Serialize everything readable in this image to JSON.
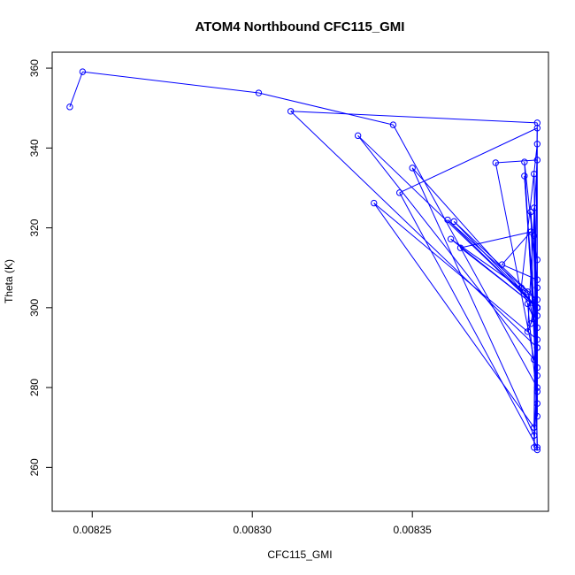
{
  "chart_data": {
    "type": "line",
    "title": "ATOM4 Northbound CFC115_GMI",
    "xlabel": "CFC115_GMI",
    "ylabel": "Theta (K)",
    "xlim": [
      0.0082375,
      0.0083925
    ],
    "ylim": [
      249,
      364
    ],
    "x_ticks": [
      "0.00825",
      "0.00830",
      "0.00835"
    ],
    "x_tick_values": [
      0.00825,
      0.0083,
      0.00835
    ],
    "y_ticks": [
      "260",
      "280",
      "300",
      "320",
      "340",
      "360"
    ],
    "y_tick_values": [
      260,
      280,
      300,
      320,
      340,
      360
    ],
    "grid": false,
    "line_color": "#0000ff",
    "marker": "open-circle",
    "series": [
      {
        "name": "",
        "x": [
          0.008243,
          0.008247,
          0.008302,
          0.008344,
          0.008389,
          0.008388,
          0.008389,
          0.008312,
          0.008389,
          0.008388,
          0.008333,
          0.008389,
          0.008386,
          0.008389,
          0.008376,
          0.008389,
          0.008388,
          0.00835,
          0.008389,
          0.008387,
          0.008389,
          0.008346,
          0.008389,
          0.008388,
          0.008338,
          0.008389,
          0.008386,
          0.008361,
          0.008389,
          0.008363,
          0.008389,
          0.008362,
          0.008389,
          0.008365,
          0.008387,
          0.008378,
          0.008389,
          0.008385,
          0.008389,
          0.008388,
          0.008389,
          0.008384,
          0.008389,
          0.008389,
          0.008386,
          0.008389,
          0.008389,
          0.008385,
          0.008389,
          0.008388,
          0.008389,
          0.008388,
          0.008389,
          0.008389,
          0.008389,
          0.008387,
          0.008389,
          0.008389,
          0.008389,
          0.008389
        ],
        "y": [
          350.3,
          359.1,
          353.8,
          345.8,
          280.0,
          265.0,
          346.3,
          349.2,
          290.0,
          287.0,
          343.1,
          300.0,
          294.0,
          337.0,
          336.3,
          283.0,
          268.0,
          335.0,
          300.0,
          324.0,
          265.0,
          328.8,
          345.0,
          270.0,
          326.2,
          292.0,
          304.0,
          322.0,
          300.0,
          321.6,
          302.0,
          317.2,
          300.0,
          315.0,
          319.0,
          310.8,
          307.0,
          336.5,
          279.0,
          333.5,
          295.0,
          305.0,
          341.0,
          276.0,
          301.0,
          300.0,
          290.0,
          333.0,
          285.0,
          325.0,
          264.4,
          318.0,
          312.0,
          272.8,
          300.0,
          296.0,
          305.0,
          300.0,
          298.0,
          300.0
        ]
      }
    ]
  }
}
